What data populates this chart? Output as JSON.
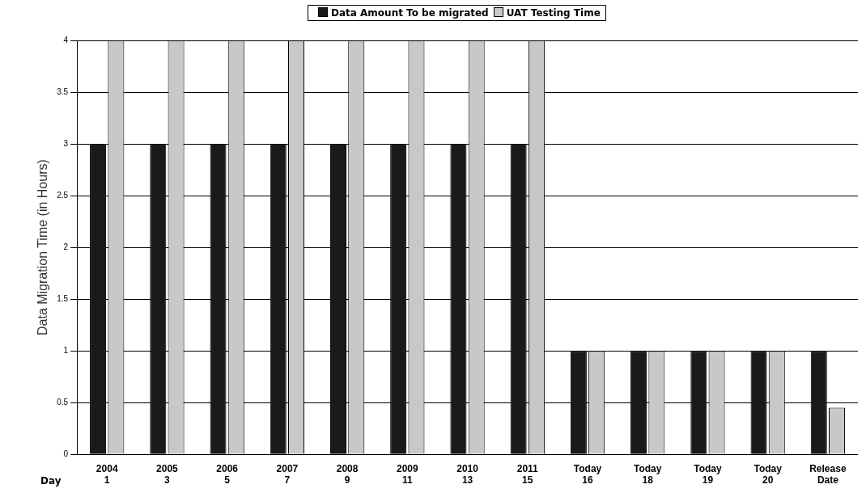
{
  "chart_data": {
    "type": "bar",
    "ylabel": "Data Migration Time (in Hours)",
    "categories": [
      "2004\n1",
      "2005\n3",
      "2006\n5",
      "2007\n7",
      "2008\n9",
      "2009\n11",
      "2010\n13",
      "2011\n15",
      "Today\n16",
      "Today\n18",
      "Today\n19",
      "Today\n20",
      "Release\nDate"
    ],
    "series": [
      {
        "name": "Data Amount To be migrated",
        "color": "#1a1a1a",
        "values": [
          3,
          3,
          3,
          3,
          3,
          3,
          3,
          3,
          1,
          1,
          1,
          1,
          1
        ]
      },
      {
        "name": "UAT Testing Time",
        "color": "#c8c8c8",
        "values": [
          4,
          4,
          4,
          4,
          4,
          4,
          4,
          4,
          1,
          1,
          1,
          1,
          0.45
        ]
      }
    ],
    "ylim": [
      0,
      4
    ],
    "yticks": [
      0,
      0.5,
      1,
      1.5,
      2,
      2.5,
      3,
      3.5,
      4
    ],
    "grid": "y",
    "legend": "top",
    "annotations": [
      "Day"
    ]
  }
}
